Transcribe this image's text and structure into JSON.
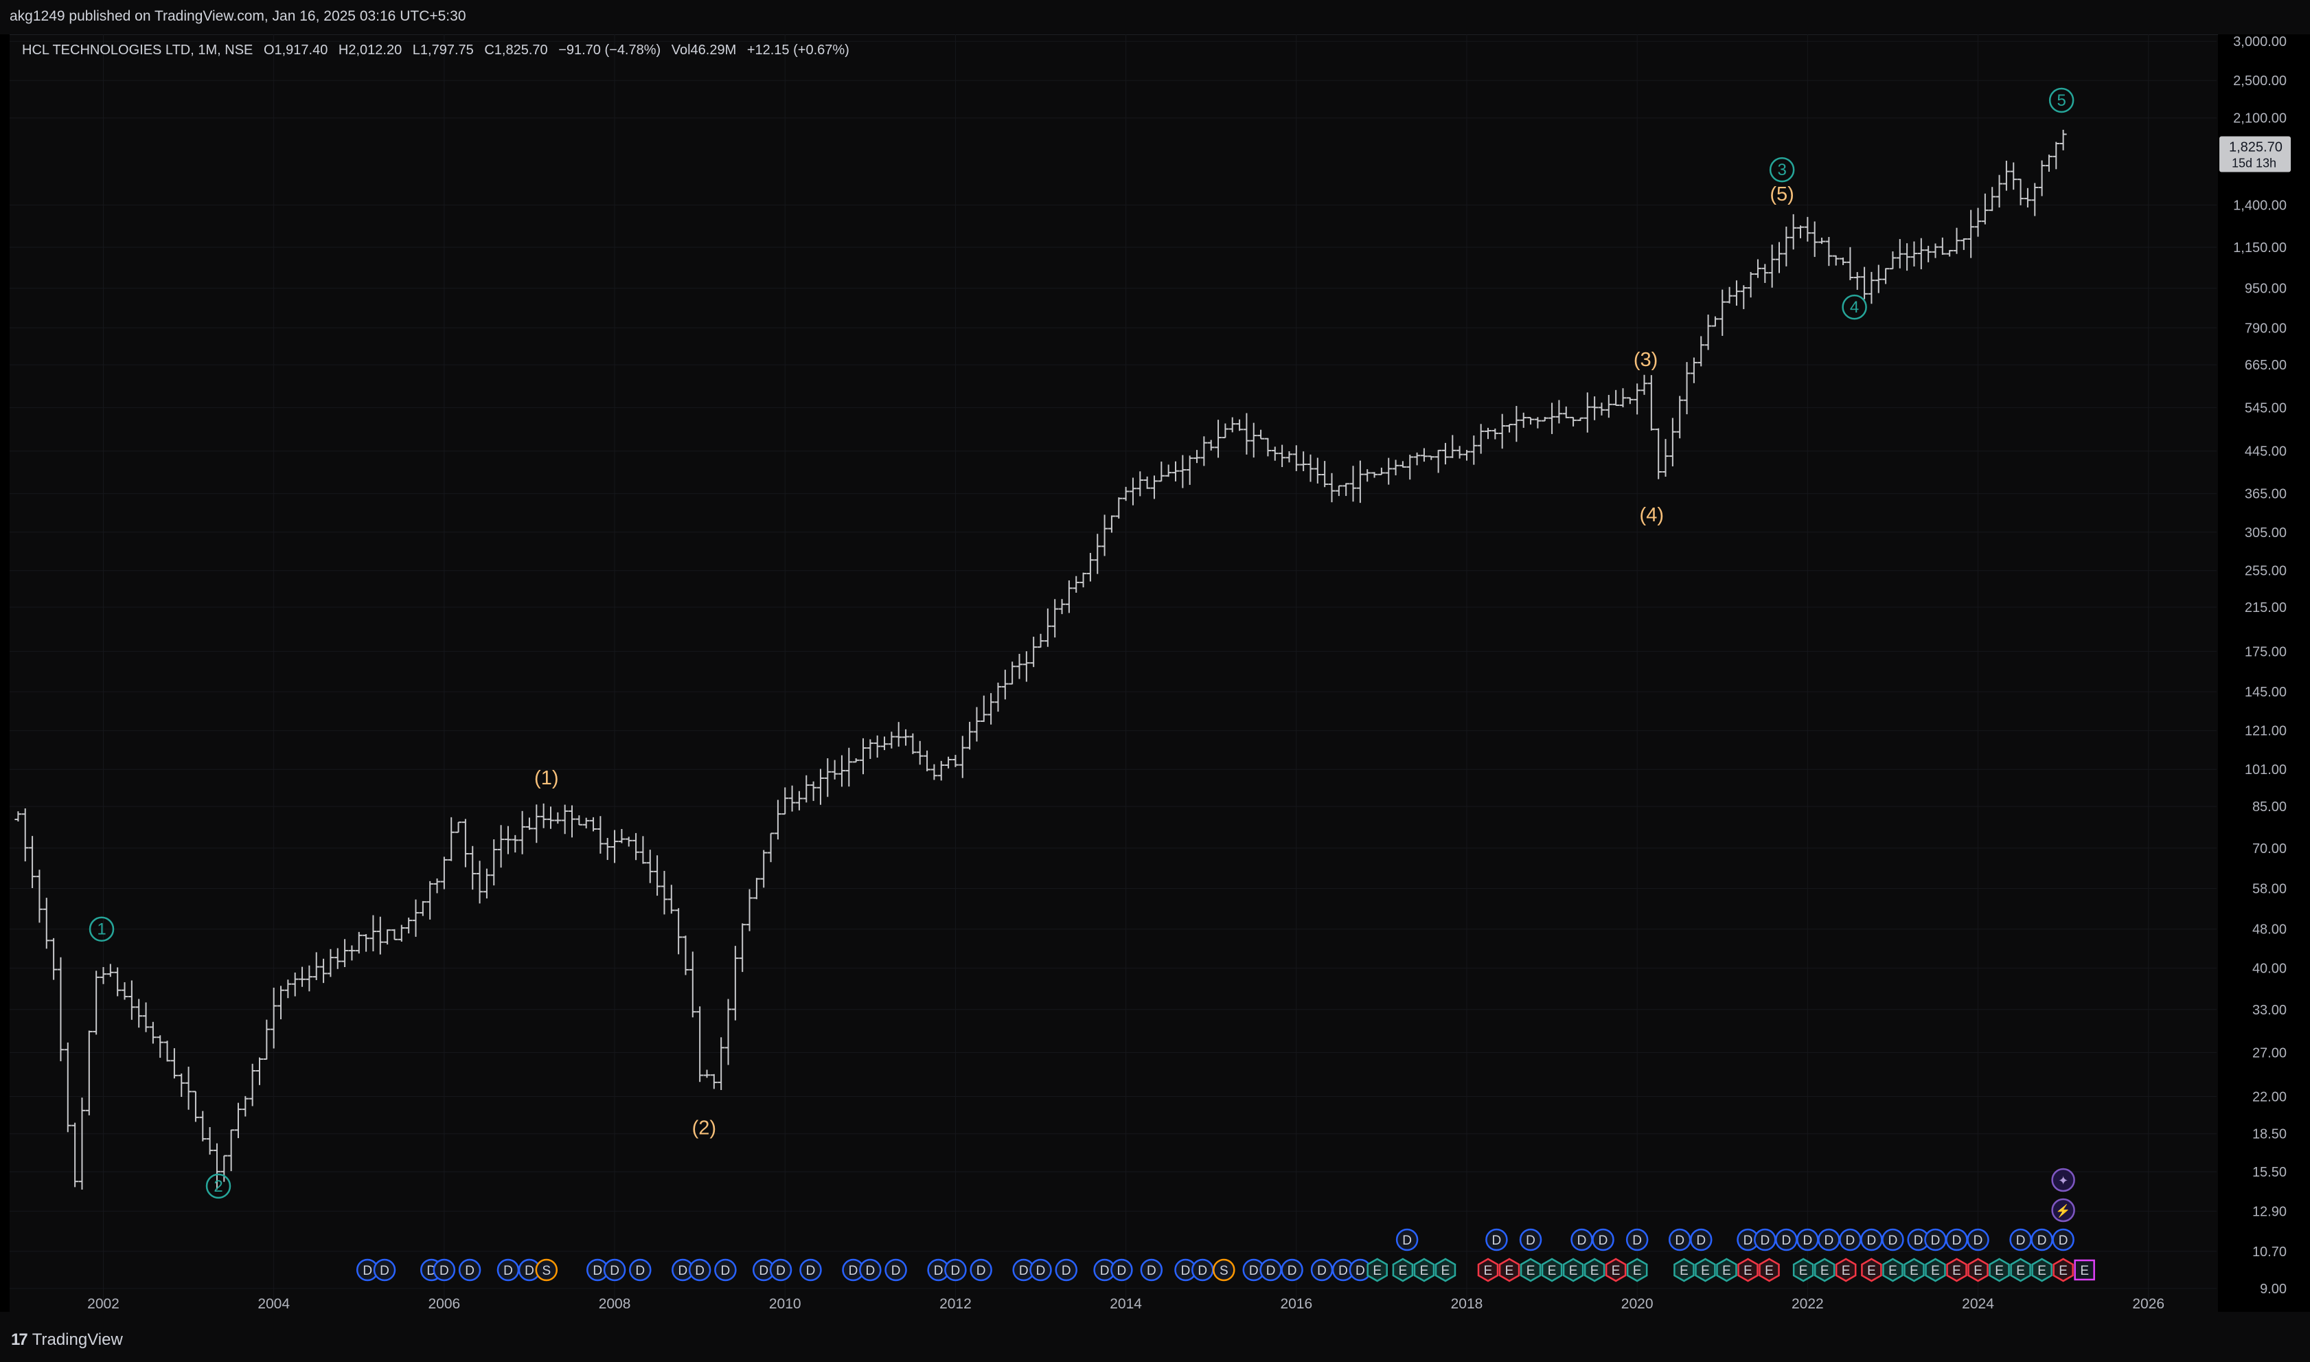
{
  "header": {
    "published": "akg1249 published on TradingView.com, Jan 16, 2025 03:16 UTC+5:30"
  },
  "legend": {
    "symbol": "HCL TECHNOLOGIES LTD, 1M, NSE",
    "open": "O1,917.40",
    "high": "H2,012.20",
    "low": "L1,797.75",
    "close": "C1,825.70",
    "change": "−91.70 (−4.78%)",
    "volume": "Vol46.29M",
    "vol_change": "+12.15 (+0.67%)"
  },
  "price_badge": {
    "price": "1,825.70",
    "countdown": "15d 13h"
  },
  "footer": {
    "brand": "TradingView"
  },
  "colors": {
    "background": "#0b0b0c",
    "bars": "#c8c9cc",
    "grid": "#16171b",
    "wave_primary": "#26a69a",
    "wave_intermediate": "#f7c07a",
    "dividend": "#2962ff",
    "split": "#ff9800",
    "earnings_green": "#26a69a",
    "earnings_red": "#f23645",
    "earnings_future": "#e040fb"
  },
  "chart_data": {
    "type": "ohlc",
    "interval": "1M",
    "scale": "log",
    "ylim": [
      8.2,
      3100
    ],
    "xlim": [
      2000.9,
      2026.8
    ],
    "y_ticks": [
      "3,000.00",
      "2,500.00",
      "2,100.00",
      "1,400.00",
      "1,150.00",
      "950.00",
      "790.00",
      "665.00",
      "545.00",
      "445.00",
      "365.00",
      "305.00",
      "255.00",
      "215.00",
      "175.00",
      "145.00",
      "121.00",
      "101.00",
      "85.00",
      "70.00",
      "58.00",
      "48.00",
      "40.00",
      "33.00",
      "27.00",
      "22.00",
      "18.50",
      "15.50",
      "12.90",
      "10.70",
      "9.00"
    ],
    "y_tick_values": [
      3000,
      2500,
      2100,
      1400,
      1150,
      950,
      790,
      665,
      545,
      445,
      365,
      305,
      255,
      215,
      175,
      145,
      121,
      101,
      85,
      70,
      58,
      48,
      40,
      33,
      27,
      22,
      18.5,
      15.5,
      12.9,
      10.7,
      9.0
    ],
    "x_ticks": [
      "2002",
      "2004",
      "2006",
      "2008",
      "2010",
      "2012",
      "2014",
      "2016",
      "2018",
      "2020",
      "2022",
      "2024",
      "2026"
    ],
    "x_tick_values": [
      2002,
      2004,
      2006,
      2008,
      2010,
      2012,
      2014,
      2016,
      2018,
      2020,
      2022,
      2024,
      2026
    ],
    "anchors": [
      [
        2001.0,
        80
      ],
      [
        2001.4,
        42
      ],
      [
        2001.65,
        14
      ],
      [
        2001.9,
        38
      ],
      [
        2002.0,
        40
      ],
      [
        2002.6,
        29
      ],
      [
        2003.0,
        22
      ],
      [
        2003.35,
        15.5
      ],
      [
        2003.7,
        23
      ],
      [
        2004.1,
        37
      ],
      [
        2004.6,
        40
      ],
      [
        2005.0,
        46
      ],
      [
        2005.5,
        47
      ],
      [
        2005.9,
        60
      ],
      [
        2006.15,
        82
      ],
      [
        2006.4,
        55
      ],
      [
        2006.6,
        70
      ],
      [
        2007.1,
        80
      ],
      [
        2007.5,
        82
      ],
      [
        2007.9,
        72
      ],
      [
        2008.2,
        72
      ],
      [
        2008.5,
        60
      ],
      [
        2008.8,
        45
      ],
      [
        2009.0,
        25
      ],
      [
        2009.2,
        24
      ],
      [
        2009.5,
        50
      ],
      [
        2009.9,
        84
      ],
      [
        2010.5,
        98
      ],
      [
        2011.0,
        112
      ],
      [
        2011.4,
        118
      ],
      [
        2011.7,
        100
      ],
      [
        2012.0,
        105
      ],
      [
        2012.5,
        148
      ],
      [
        2013.0,
        183
      ],
      [
        2013.3,
        230
      ],
      [
        2013.6,
        268
      ],
      [
        2014.0,
        375
      ],
      [
        2014.4,
        390
      ],
      [
        2014.8,
        430
      ],
      [
        2015.2,
        500
      ],
      [
        2015.6,
        465
      ],
      [
        2016.0,
        420
      ],
      [
        2016.4,
        370
      ],
      [
        2016.9,
        400
      ],
      [
        2017.5,
        440
      ],
      [
        2017.9,
        445
      ],
      [
        2018.2,
        480
      ],
      [
        2018.6,
        510
      ],
      [
        2019.0,
        520
      ],
      [
        2019.4,
        530
      ],
      [
        2019.8,
        560
      ],
      [
        2020.1,
        600
      ],
      [
        2020.25,
        400
      ],
      [
        2020.5,
        560
      ],
      [
        2020.7,
        720
      ],
      [
        2020.95,
        860
      ],
      [
        2021.3,
        1000
      ],
      [
        2021.6,
        1070
      ],
      [
        2021.85,
        1300
      ],
      [
        2022.1,
        1200
      ],
      [
        2022.4,
        1050
      ],
      [
        2022.7,
        940
      ],
      [
        2023.0,
        1080
      ],
      [
        2023.4,
        1120
      ],
      [
        2023.8,
        1180
      ],
      [
        2024.1,
        1400
      ],
      [
        2024.35,
        1650
      ],
      [
        2024.55,
        1400
      ],
      [
        2024.8,
        1750
      ],
      [
        2025.0,
        1900
      ],
      [
        2025.05,
        1825.7
      ]
    ],
    "elliott_primary": [
      {
        "label": "1",
        "x": 2001.98,
        "price": 48.0,
        "pos": "above"
      },
      {
        "label": "2",
        "x": 2003.35,
        "price": 14.5,
        "pos": "below"
      },
      {
        "label": "3",
        "x": 2021.7,
        "price": 1650,
        "pos": "above"
      },
      {
        "label": "4",
        "x": 2022.55,
        "price": 870,
        "pos": "below"
      },
      {
        "label": "5",
        "x": 2024.98,
        "price": 2280,
        "pos": "above"
      }
    ],
    "elliott_intermediate": [
      {
        "label": "(1)",
        "x": 2007.2,
        "price": 97,
        "pos": "above"
      },
      {
        "label": "(2)",
        "x": 2009.05,
        "price": 19,
        "pos": "below"
      },
      {
        "label": "(3)",
        "x": 2020.1,
        "price": 680,
        "pos": "above"
      },
      {
        "label": "(4)",
        "x": 2020.17,
        "price": 330,
        "pos": "below"
      },
      {
        "label": "(5)",
        "x": 2021.7,
        "price": 1470,
        "pos": "above"
      }
    ],
    "event_markers": {
      "dividends_row1": [
        2017.3,
        2018.35,
        2018.75,
        2019.35,
        2019.6,
        2020.0,
        2020.5,
        2020.75,
        2021.3,
        2021.5,
        2021.75,
        2022.0,
        2022.25,
        2022.5,
        2022.75,
        2023.0,
        2023.3,
        2023.5,
        2023.75,
        2024.0,
        2024.5,
        2024.75,
        2025.0
      ],
      "dividends_row2": [
        2005.1,
        2005.3,
        2005.85,
        2006.0,
        2006.3,
        2006.75,
        2007.0,
        2007.8,
        2008.0,
        2008.3,
        2008.8,
        2009.0,
        2009.3,
        2009.75,
        2009.95,
        2010.3,
        2010.8,
        2011.0,
        2011.3,
        2011.8,
        2012.0,
        2012.3,
        2012.8,
        2013.0,
        2013.3,
        2013.75,
        2013.95,
        2014.3,
        2014.7,
        2014.9,
        2015.5,
        2015.7,
        2015.95,
        2016.3,
        2016.55,
        2016.75
      ],
      "splits": [
        2007.2,
        2015.15
      ],
      "earnings_green": [
        2016.95,
        2017.25,
        2017.5,
        2017.75,
        2018.75,
        2019.0,
        2019.25,
        2019.5,
        2020.0,
        2020.55,
        2020.8,
        2021.05,
        2021.95,
        2022.2,
        2023.0,
        2023.25,
        2023.5,
        2024.25,
        2024.5,
        2024.75
      ],
      "earnings_red": [
        2018.25,
        2018.5,
        2019.75,
        2021.3,
        2021.55,
        2022.45,
        2022.75,
        2023.75,
        2024.0,
        2025.0
      ],
      "earnings_future": [
        2025.25
      ],
      "ideas": [
        {
          "glyph": "✦",
          "x": 2025.0,
          "price": 12.8
        },
        {
          "glyph": "⚡",
          "x": 2025.0,
          "price": 11.4
        }
      ]
    }
  }
}
